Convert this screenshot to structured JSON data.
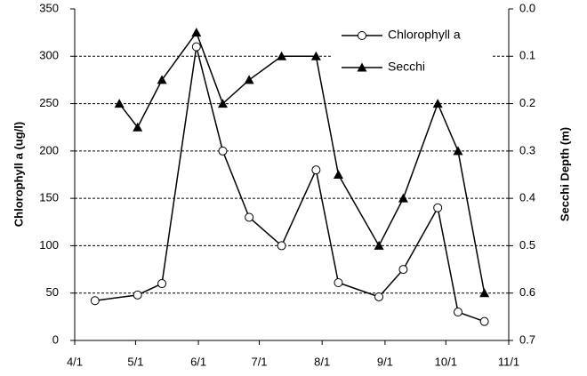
{
  "chart_data": {
    "type": "line",
    "xlabel": null,
    "ylabel": "Chlorophyll a (ug/l)",
    "y2label": "Secchi Depth (m)",
    "xlim": [
      0,
      214
    ],
    "xticks": [
      {
        "value": 0,
        "label": "4/1"
      },
      {
        "value": 30,
        "label": "5/1"
      },
      {
        "value": 61,
        "label": "6/1"
      },
      {
        "value": 91,
        "label": "7/1"
      },
      {
        "value": 122,
        "label": "8/1"
      },
      {
        "value": 153,
        "label": "9/1"
      },
      {
        "value": 183,
        "label": "10/1"
      },
      {
        "value": 214,
        "label": "11/1"
      }
    ],
    "ylim": [
      0,
      350
    ],
    "yticks": [
      0,
      50,
      100,
      150,
      200,
      250,
      300,
      350
    ],
    "y2lim": [
      0,
      0.7
    ],
    "y2_inverted": true,
    "y2ticks": [
      {
        "value": 0,
        "label": "0.0"
      },
      0.1,
      0.2,
      0.3,
      0.4,
      0.5,
      0.6,
      0.7
    ],
    "grid": true,
    "legend": "upper right",
    "series": [
      {
        "name": "Chlorophyll a",
        "color": "#000000",
        "marker": "circle",
        "x": [
          10,
          31,
          43,
          60,
          73,
          86,
          102,
          119,
          130,
          150,
          162,
          179,
          189,
          202
        ],
        "values": [
          42,
          48,
          60,
          310,
          200,
          130,
          100,
          180,
          61,
          46,
          75,
          140,
          30,
          20
        ]
      },
      {
        "name": "Secchi",
        "color": "#000000",
        "marker": "triangle",
        "axis": "y2",
        "x": [
          22,
          31,
          43,
          60,
          73,
          86,
          102,
          119,
          130,
          150,
          162,
          179,
          189,
          202
        ],
        "values": [
          0.2,
          0.25,
          0.15,
          0.05,
          0.2,
          0.15,
          0.1,
          0.1,
          0.35,
          0.5,
          0.4,
          0.2,
          0.3,
          0.6
        ]
      }
    ]
  }
}
